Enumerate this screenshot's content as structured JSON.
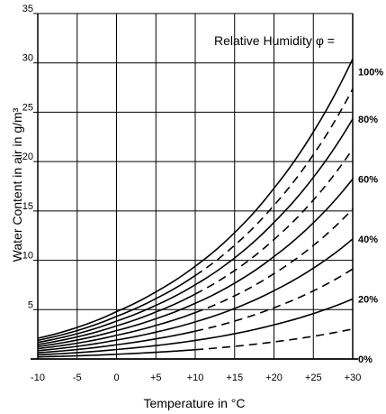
{
  "chart_data": {
    "type": "line",
    "x_axis": {
      "label": "Temperature in °C",
      "range": [
        -10,
        30
      ],
      "ticks": [
        -10,
        -5,
        0,
        5,
        10,
        15,
        20,
        25,
        30
      ],
      "tick_labels": [
        "-10",
        "-5",
        "0",
        "+5",
        "+10",
        "+15",
        "+20",
        "+25",
        "+30"
      ]
    },
    "y_axis": {
      "label": "Water Content in air in g/m³",
      "range": [
        0,
        35
      ],
      "ticks": [
        5,
        10,
        15,
        20,
        25,
        30,
        35
      ],
      "tick_labels": [
        "5",
        "10",
        "15",
        "20",
        "25",
        "30",
        "35"
      ]
    },
    "annotation": "Relative Humidity φ =",
    "grid": true,
    "rh_labels": [
      {
        "rh": 100,
        "text": "100%"
      },
      {
        "rh": 80,
        "text": "80%"
      },
      {
        "rh": 60,
        "text": "60%"
      },
      {
        "rh": 40,
        "text": "40%"
      },
      {
        "rh": 20,
        "text": "20%"
      },
      {
        "rh": 0,
        "text": "0%"
      }
    ],
    "saturation_curve": {
      "x": [
        -10,
        -5,
        0,
        5,
        10,
        15,
        20,
        25,
        30
      ],
      "y": [
        2.1,
        3.2,
        4.8,
        6.8,
        9.4,
        12.8,
        17.3,
        23.0,
        30.4
      ]
    },
    "series": [
      {
        "rh": 100,
        "style": "solid"
      },
      {
        "rh": 90,
        "style": "dashed-above-10"
      },
      {
        "rh": 80,
        "style": "solid"
      },
      {
        "rh": 70,
        "style": "dashed-above-10"
      },
      {
        "rh": 60,
        "style": "solid"
      },
      {
        "rh": 50,
        "style": "dashed-above-10"
      },
      {
        "rh": 40,
        "style": "solid"
      },
      {
        "rh": 30,
        "style": "dashed-above-10"
      },
      {
        "rh": 20,
        "style": "solid"
      },
      {
        "rh": 10,
        "style": "dashed-above-10"
      }
    ]
  }
}
